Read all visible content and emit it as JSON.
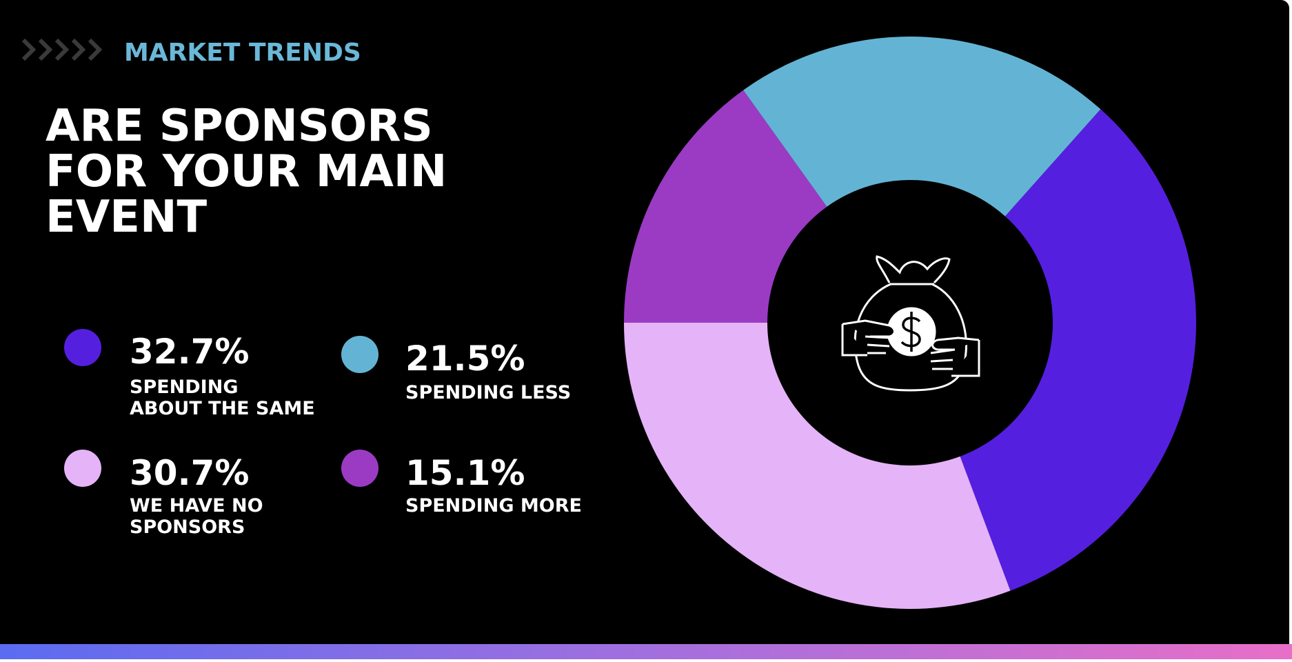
{
  "chart_data": {
    "type": "pie",
    "kicker": "MARKET TRENDS",
    "title": "ARE SPONSORS\nFOR YOUR MAIN\nEVENT",
    "series": [
      {
        "name": "SPENDING\nABOUT THE SAME",
        "color": "#551fe0",
        "values": [
          32.7
        ],
        "value_labels": [
          "32.7%"
        ]
      },
      {
        "name": "SPENDING LESS",
        "color": "#63b4d4",
        "values": [
          21.5
        ],
        "value_labels": [
          "21.5%"
        ]
      },
      {
        "name": "WE HAVE NO\nSPONSORS",
        "color": "#e5b3f7",
        "values": [
          30.7
        ],
        "value_labels": [
          "30.7%"
        ]
      },
      {
        "name": "SPENDING MORE",
        "color": "#9b3bc4",
        "values": [
          15.1
        ],
        "value_labels": [
          "15.1%"
        ]
      }
    ]
  }
}
